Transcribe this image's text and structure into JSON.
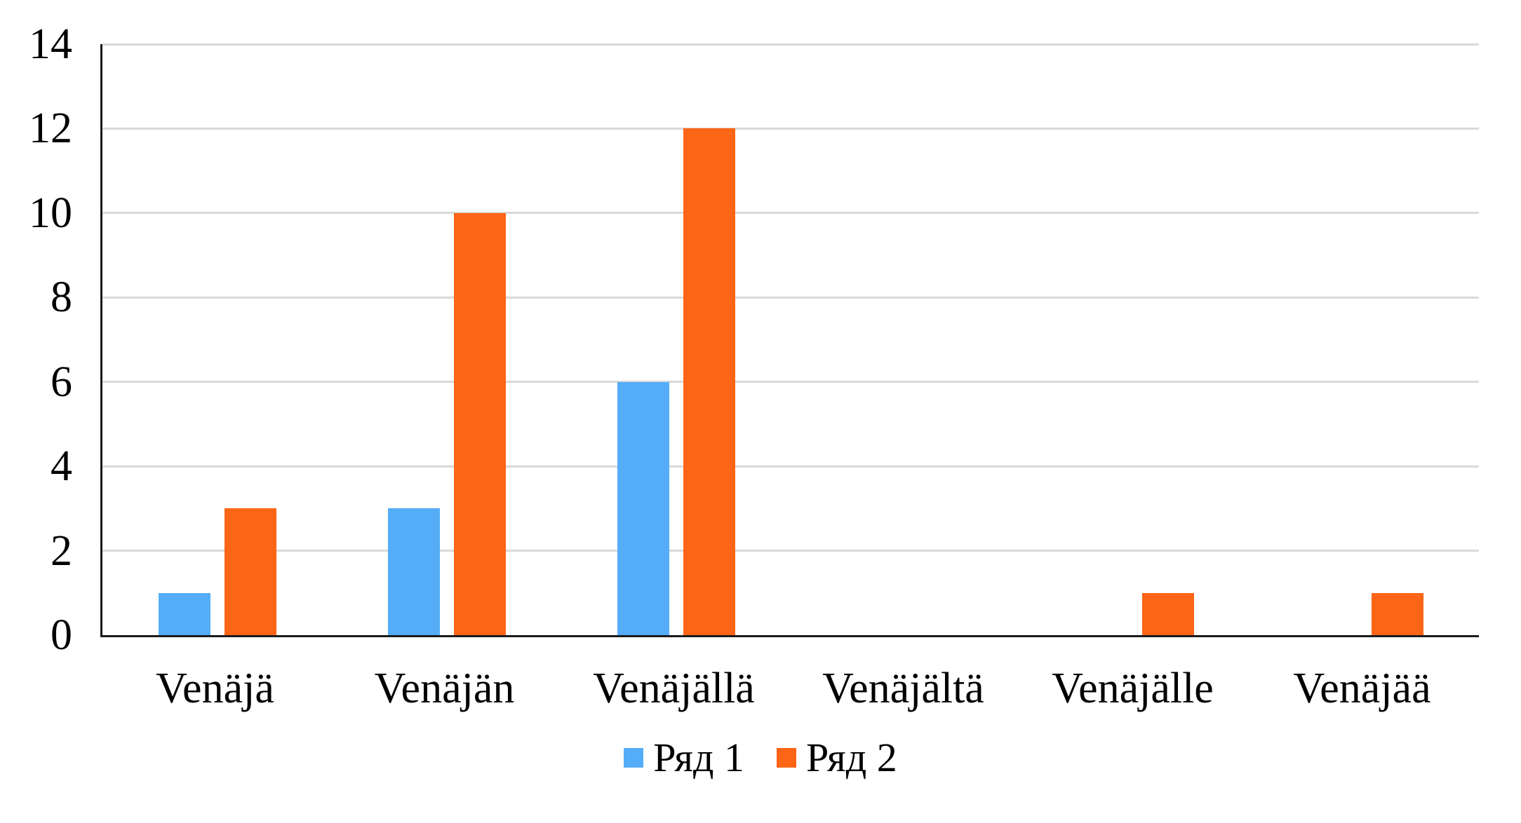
{
  "chart_data": {
    "type": "bar",
    "categories": [
      "Venäjä",
      "Venäjän",
      "Venäjällä",
      "Venäjältä",
      "Venäjälle",
      "Venäjää"
    ],
    "series": [
      {
        "name": "Ряд 1",
        "color": "#55ADF7",
        "values": [
          1,
          3,
          6,
          0,
          0,
          0
        ]
      },
      {
        "name": "Ряд 2",
        "color": "#FC6416",
        "values": [
          3,
          10,
          12,
          0,
          1,
          1
        ]
      }
    ],
    "xlabel": "",
    "ylabel": "",
    "ylim": [
      0,
      14
    ],
    "yticks": [
      0,
      2,
      4,
      6,
      8,
      10,
      12,
      14
    ],
    "grid": true,
    "legend_position": "bottom-center",
    "colors": {
      "gridline": "#D9D9D9",
      "axis_line": "#1a1a1a",
      "text": "#000000",
      "background": "#FFFFFF"
    }
  }
}
